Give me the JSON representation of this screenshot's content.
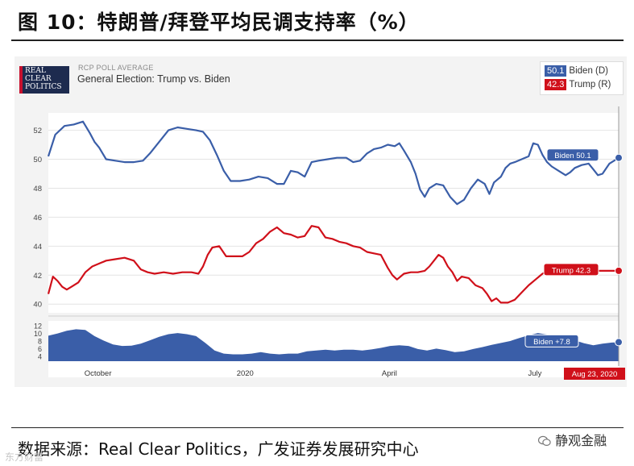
{
  "figure": {
    "title": "图 10：特朗普/拜登平均民调支持率（%）",
    "source": "数据来源：Real Clear Politics，广发证券发展研究中心",
    "wechat_account": "静观金融",
    "watermark": "东方财富"
  },
  "header": {
    "logo_lines": [
      "REAL",
      "CLEAR",
      "POLITICS"
    ],
    "poll_label": "RCP POLL AVERAGE",
    "poll_title": "General Election: Trump vs. Biden"
  },
  "legend": [
    {
      "value": "50.1",
      "label": "Biden (D)",
      "color": "#3a5ea8"
    },
    {
      "value": "42.3",
      "label": "Trump (R)",
      "color": "#d0101a"
    }
  ],
  "callouts": {
    "biden": "Biden 50.1",
    "trump": "Trump 42.3",
    "spread": "Biden +7.8",
    "date": "Aug 23, 2020"
  },
  "chart_data": {
    "type": "line",
    "x_labels": [
      "October",
      "2020",
      "April",
      "July"
    ],
    "upper_panel": {
      "yticks": [
        40,
        42,
        44,
        46,
        48,
        50,
        52
      ],
      "ylim": [
        39.4,
        53.2
      ],
      "grid": true,
      "series": [
        {
          "name": "Biden (D)",
          "color": "#3a5ea8",
          "points": [
            [
              0,
              50.2
            ],
            [
              3,
              51.7
            ],
            [
              7,
              52.3
            ],
            [
              11,
              52.4
            ],
            [
              15,
              52.6
            ],
            [
              18,
              51.8
            ],
            [
              20,
              51.2
            ],
            [
              22,
              50.8
            ],
            [
              25,
              50.0
            ],
            [
              29,
              49.9
            ],
            [
              33,
              49.8
            ],
            [
              37,
              49.8
            ],
            [
              41,
              49.9
            ],
            [
              44,
              50.4
            ],
            [
              48,
              51.2
            ],
            [
              52,
              52.0
            ],
            [
              56,
              52.2
            ],
            [
              60,
              52.1
            ],
            [
              64,
              52.0
            ],
            [
              67,
              51.9
            ],
            [
              70,
              51.3
            ],
            [
              73,
              50.3
            ],
            [
              76,
              49.2
            ],
            [
              79,
              48.5
            ],
            [
              83,
              48.5
            ],
            [
              87,
              48.6
            ],
            [
              91,
              48.8
            ],
            [
              95,
              48.7
            ],
            [
              99,
              48.3
            ],
            [
              102,
              48.3
            ],
            [
              105,
              49.2
            ],
            [
              108,
              49.1
            ],
            [
              111,
              48.8
            ],
            [
              114,
              49.8
            ],
            [
              117,
              49.9
            ],
            [
              121,
              50.0
            ],
            [
              125,
              50.1
            ],
            [
              129,
              50.1
            ],
            [
              132,
              49.8
            ],
            [
              135,
              49.9
            ],
            [
              138,
              50.4
            ],
            [
              141,
              50.7
            ],
            [
              144,
              50.8
            ],
            [
              147,
              51.0
            ],
            [
              150,
              50.9
            ],
            [
              152,
              51.1
            ],
            [
              154,
              50.6
            ],
            [
              157,
              49.8
            ],
            [
              159,
              49.0
            ],
            [
              161,
              47.9
            ],
            [
              163,
              47.4
            ],
            [
              165,
              48.0
            ],
            [
              168,
              48.3
            ],
            [
              171,
              48.2
            ],
            [
              174,
              47.4
            ],
            [
              177,
              46.9
            ],
            [
              180,
              47.2
            ],
            [
              183,
              48.0
            ],
            [
              186,
              48.6
            ],
            [
              189,
              48.3
            ],
            [
              191,
              47.6
            ],
            [
              193,
              48.4
            ],
            [
              196,
              48.8
            ],
            [
              198,
              49.4
            ],
            [
              200,
              49.7
            ],
            [
              202,
              49.8
            ],
            [
              205,
              50.0
            ],
            [
              208,
              50.2
            ],
            [
              210,
              51.1
            ],
            [
              212,
              51.0
            ],
            [
              214,
              50.3
            ],
            [
              216,
              49.8
            ],
            [
              218,
              49.5
            ],
            [
              221,
              49.2
            ],
            [
              224,
              48.9
            ],
            [
              226,
              49.1
            ],
            [
              228,
              49.4
            ],
            [
              231,
              49.6
            ],
            [
              234,
              49.7
            ],
            [
              236,
              49.3
            ],
            [
              238,
              48.9
            ],
            [
              240,
              49.0
            ],
            [
              243,
              49.7
            ],
            [
              245,
              49.9
            ],
            [
              247,
              50.1
            ]
          ]
        },
        {
          "name": "Trump (R)",
          "color": "#d0101a",
          "points": [
            [
              0,
              40.7
            ],
            [
              2,
              41.9
            ],
            [
              4,
              41.6
            ],
            [
              6,
              41.2
            ],
            [
              8,
              41.0
            ],
            [
              10,
              41.2
            ],
            [
              13,
              41.5
            ],
            [
              16,
              42.2
            ],
            [
              19,
              42.6
            ],
            [
              22,
              42.8
            ],
            [
              25,
              43.0
            ],
            [
              29,
              43.1
            ],
            [
              33,
              43.2
            ],
            [
              37,
              43.0
            ],
            [
              40,
              42.4
            ],
            [
              43,
              42.2
            ],
            [
              46,
              42.1
            ],
            [
              50,
              42.2
            ],
            [
              54,
              42.1
            ],
            [
              58,
              42.2
            ],
            [
              62,
              42.2
            ],
            [
              65,
              42.1
            ],
            [
              67,
              42.6
            ],
            [
              69,
              43.4
            ],
            [
              71,
              43.9
            ],
            [
              74,
              44.0
            ],
            [
              77,
              43.3
            ],
            [
              80,
              43.3
            ],
            [
              84,
              43.3
            ],
            [
              87,
              43.6
            ],
            [
              90,
              44.2
            ],
            [
              93,
              44.5
            ],
            [
              96,
              45.0
            ],
            [
              99,
              45.3
            ],
            [
              102,
              44.9
            ],
            [
              105,
              44.8
            ],
            [
              108,
              44.6
            ],
            [
              111,
              44.7
            ],
            [
              114,
              45.4
            ],
            [
              117,
              45.3
            ],
            [
              120,
              44.6
            ],
            [
              123,
              44.5
            ],
            [
              126,
              44.3
            ],
            [
              129,
              44.2
            ],
            [
              132,
              44.0
            ],
            [
              135,
              43.9
            ],
            [
              138,
              43.6
            ],
            [
              141,
              43.5
            ],
            [
              144,
              43.4
            ],
            [
              147,
              42.5
            ],
            [
              149,
              42.0
            ],
            [
              151,
              41.7
            ],
            [
              154,
              42.1
            ],
            [
              157,
              42.2
            ],
            [
              160,
              42.2
            ],
            [
              163,
              42.3
            ],
            [
              165,
              42.6
            ],
            [
              167,
              43.0
            ],
            [
              169,
              43.4
            ],
            [
              171,
              43.2
            ],
            [
              173,
              42.6
            ],
            [
              175,
              42.2
            ],
            [
              177,
              41.6
            ],
            [
              179,
              41.9
            ],
            [
              182,
              41.8
            ],
            [
              185,
              41.3
            ],
            [
              188,
              41.1
            ],
            [
              190,
              40.7
            ],
            [
              192,
              40.2
            ],
            [
              194,
              40.4
            ],
            [
              196,
              40.1
            ],
            [
              199,
              40.1
            ],
            [
              202,
              40.3
            ],
            [
              205,
              40.8
            ],
            [
              208,
              41.3
            ],
            [
              211,
              41.7
            ],
            [
              214,
              42.1
            ],
            [
              217,
              42.4
            ],
            [
              220,
              42.3
            ],
            [
              222,
              42.1
            ],
            [
              224,
              42.5
            ],
            [
              226,
              42.4
            ],
            [
              229,
              42.3
            ],
            [
              247,
              42.3
            ]
          ]
        }
      ]
    },
    "lower_panel": {
      "name": "Spread (Biden lead)",
      "color": "#3a5ea8",
      "yticks": [
        4,
        6,
        8,
        10,
        12
      ],
      "ylim": [
        2.8,
        13.4
      ],
      "points": [
        [
          0,
          9.5
        ],
        [
          4,
          10.1
        ],
        [
          8,
          10.8
        ],
        [
          12,
          11.2
        ],
        [
          16,
          11.0
        ],
        [
          20,
          9.4
        ],
        [
          24,
          8.2
        ],
        [
          28,
          7.2
        ],
        [
          32,
          6.8
        ],
        [
          36,
          6.9
        ],
        [
          40,
          7.4
        ],
        [
          44,
          8.3
        ],
        [
          48,
          9.2
        ],
        [
          52,
          9.9
        ],
        [
          56,
          10.2
        ],
        [
          60,
          9.9
        ],
        [
          64,
          9.4
        ],
        [
          68,
          7.6
        ],
        [
          72,
          5.6
        ],
        [
          76,
          4.8
        ],
        [
          80,
          4.6
        ],
        [
          84,
          4.6
        ],
        [
          88,
          4.8
        ],
        [
          92,
          5.2
        ],
        [
          96,
          4.8
        ],
        [
          100,
          4.6
        ],
        [
          104,
          4.8
        ],
        [
          108,
          4.8
        ],
        [
          112,
          5.4
        ],
        [
          116,
          5.6
        ],
        [
          120,
          5.8
        ],
        [
          124,
          5.6
        ],
        [
          128,
          5.8
        ],
        [
          132,
          5.8
        ],
        [
          136,
          5.6
        ],
        [
          140,
          5.9
        ],
        [
          144,
          6.3
        ],
        [
          148,
          6.8
        ],
        [
          152,
          7.0
        ],
        [
          156,
          6.8
        ],
        [
          160,
          6.0
        ],
        [
          164,
          5.6
        ],
        [
          168,
          6.1
        ],
        [
          172,
          5.7
        ],
        [
          176,
          5.2
        ],
        [
          180,
          5.4
        ],
        [
          184,
          6.0
        ],
        [
          188,
          6.5
        ],
        [
          192,
          7.1
        ],
        [
          196,
          7.6
        ],
        [
          200,
          8.1
        ],
        [
          204,
          8.9
        ],
        [
          208,
          9.6
        ],
        [
          212,
          10.2
        ],
        [
          216,
          9.8
        ],
        [
          220,
          9.3
        ],
        [
          224,
          8.8
        ],
        [
          228,
          8.3
        ],
        [
          232,
          7.5
        ],
        [
          236,
          7.0
        ],
        [
          240,
          7.4
        ],
        [
          244,
          7.7
        ],
        [
          247,
          7.8
        ]
      ]
    }
  }
}
